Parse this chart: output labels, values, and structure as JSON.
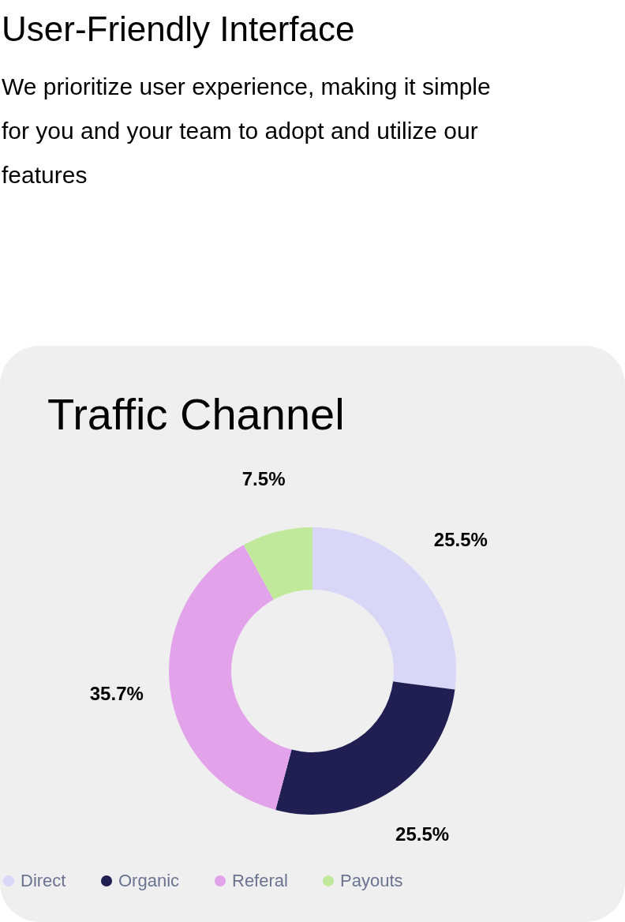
{
  "chart_data": {
    "type": "donut",
    "title": "Traffic Channel",
    "annotations": [
      "User-Friendly Interface",
      "We prioritize user experience, making it simple for you and your team to adopt and utilize our features"
    ],
    "categories": [
      "Direct",
      "Organic",
      "Referal",
      "Payouts"
    ],
    "values": [
      25.5,
      25.5,
      35.7,
      7.5
    ],
    "value_labels": [
      "25.5%",
      "25.5%",
      "35.7%",
      "7.5%"
    ],
    "colors": [
      "#d9d6f8",
      "#211f52",
      "#e2a3ea",
      "#c1e99b"
    ],
    "legend": "bottom"
  }
}
